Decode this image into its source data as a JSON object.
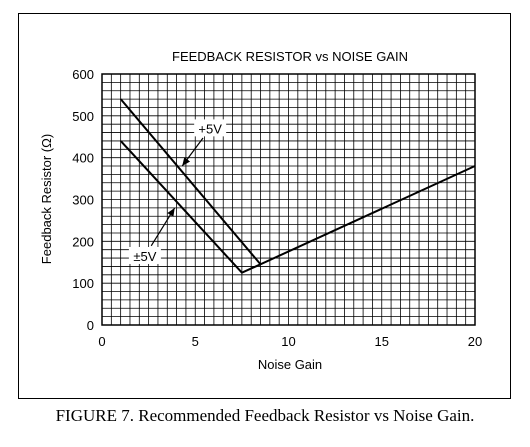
{
  "figure": {
    "caption": "FIGURE 7. Recommended Feedback Resistor vs Noise Gain."
  },
  "chart_data": {
    "type": "line",
    "title": "FEEDBACK RESISTOR vs NOISE GAIN",
    "xlabel": "Noise Gain",
    "ylabel": "Feedback Resistor (Ω)",
    "xlim": [
      0,
      20
    ],
    "ylim": [
      0,
      600
    ],
    "xticks": [
      0,
      5,
      10,
      15,
      20
    ],
    "yticks": [
      0,
      100,
      200,
      300,
      400,
      500,
      600
    ],
    "grid": true,
    "series": [
      {
        "name": "+5V",
        "x": [
          1,
          8.5,
          20
        ],
        "y": [
          540,
          145,
          380
        ]
      },
      {
        "name": "±5V",
        "x": [
          1,
          7.5,
          8.5
        ],
        "y": [
          440,
          125,
          145
        ]
      }
    ],
    "annotations": [
      {
        "text": "+5V",
        "x": 5.8,
        "y": 470,
        "points_to": [
          4.3,
          380
        ]
      },
      {
        "text": "±5V",
        "x": 2.3,
        "y": 165,
        "points_to": [
          3.9,
          280
        ]
      }
    ]
  }
}
